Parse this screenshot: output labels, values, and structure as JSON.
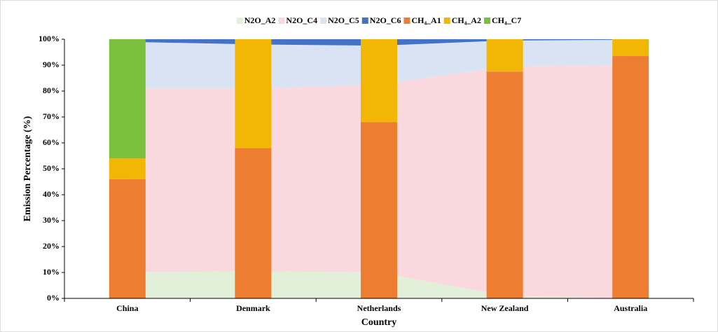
{
  "chart_data": {
    "type": "bar",
    "x_label": "Country",
    "y_label": "Emission Percentage (%)",
    "categories": [
      "China",
      "Denmark",
      "Netherlands",
      "New Zealand",
      "Australia"
    ],
    "series": [
      {
        "name": "N2O_A2",
        "color": "#e2f0d9",
        "mark": "area",
        "values": [
          10,
          10.5,
          10,
          1,
          0
        ]
      },
      {
        "name": "N2O_C4",
        "color": "#f9d9de",
        "mark": "area",
        "values": [
          71,
          70.5,
          72.5,
          88.5,
          90
        ]
      },
      {
        "name": "N2O_C5",
        "color": "#dae3f3",
        "mark": "area",
        "values": [
          18,
          17,
          15,
          10,
          9.8
        ]
      },
      {
        "name": "N2O_C6",
        "color": "#4472c4",
        "mark": "area",
        "values": [
          1,
          2,
          2.5,
          0.5,
          0.2
        ]
      },
      {
        "name": "CH₄_A1",
        "color": "#ed7d31",
        "mark": "bar",
        "values": [
          46,
          58,
          68,
          87.5,
          93.5
        ]
      },
      {
        "name": "CH₄_A2",
        "color": "#f2b705",
        "mark": "bar",
        "values": [
          8,
          42,
          32,
          12.5,
          6.5
        ]
      },
      {
        "name": "CH₄_C7",
        "color": "#7bbf3e",
        "mark": "bar",
        "values": [
          46,
          0,
          0,
          0,
          0
        ]
      }
    ],
    "ylim": [
      0,
      100
    ],
    "yticks": [
      {
        "value": 0,
        "label": "0%"
      },
      {
        "value": 10,
        "label": "10%"
      },
      {
        "value": 20,
        "label": "20%"
      },
      {
        "value": 30,
        "label": "30%"
      },
      {
        "value": 40,
        "label": "40%"
      },
      {
        "value": 50,
        "label": "50%"
      },
      {
        "value": 60,
        "label": "60%"
      },
      {
        "value": 70,
        "label": "70%"
      },
      {
        "value": 80,
        "label": "80%"
      },
      {
        "value": 90,
        "label": "90%"
      },
      {
        "value": 100,
        "label": "100%"
      }
    ],
    "legend": "top"
  }
}
